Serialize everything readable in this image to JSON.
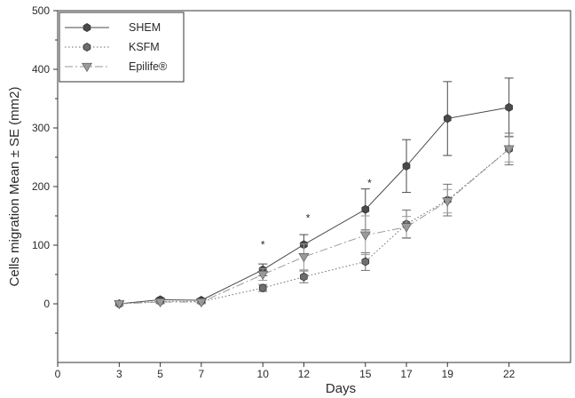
{
  "chart_data": {
    "type": "line",
    "title": "",
    "xlabel": "Days",
    "ylabel": "Cells migration Mean ± SE (mm2)",
    "xlim": [
      0,
      25
    ],
    "ylim": [
      -100,
      500
    ],
    "x_ticks": [
      0,
      3,
      5,
      7,
      10,
      12,
      15,
      17,
      19,
      22
    ],
    "y_ticks": [
      0,
      100,
      200,
      300,
      400,
      500
    ],
    "x_tick_positions": [
      0,
      3,
      5,
      7,
      10,
      12,
      15,
      17,
      19,
      22
    ],
    "grid": false,
    "legend_position": "top-left",
    "series": [
      {
        "name": "SHEM",
        "marker": "hexagon",
        "line_style": "solid",
        "color": "#4a4a4a",
        "values": [
          0,
          7,
          6,
          58,
          101,
          161,
          235,
          316,
          335
        ],
        "errors": [
          3,
          3,
          3,
          10,
          17,
          35,
          45,
          63,
          50
        ]
      },
      {
        "name": "KSFM",
        "marker": "hexagon",
        "line_style": "dotted",
        "color": "#6e6e6e",
        "values": [
          0,
          4,
          4,
          27,
          46,
          72,
          136,
          177,
          264
        ],
        "errors": [
          3,
          3,
          3,
          6,
          10,
          15,
          24,
          27,
          27
        ]
      },
      {
        "name": "Epilife®",
        "marker": "triangle-down",
        "line_style": "dashdot",
        "color": "#9a9a9a",
        "values": [
          0,
          3,
          3,
          50,
          80,
          117,
          131,
          175,
          264
        ],
        "errors": [
          3,
          3,
          3,
          10,
          22,
          33,
          18,
          20,
          22
        ]
      }
    ],
    "annotations": [
      {
        "text": "*",
        "x": 10,
        "y": 95
      },
      {
        "text": "*",
        "x": 12.2,
        "y": 140
      },
      {
        "text": "*",
        "x": 15.2,
        "y": 200
      }
    ]
  }
}
